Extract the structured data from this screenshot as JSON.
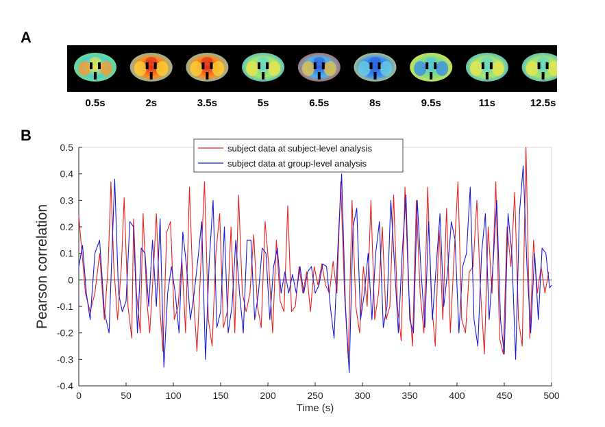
{
  "panels": {
    "a_label": "A",
    "b_label": "B"
  },
  "brain_frames": [
    {
      "label": "0.5s",
      "state": "mixed-warm"
    },
    {
      "label": "2s",
      "state": "hot"
    },
    {
      "label": "3.5s",
      "state": "hot"
    },
    {
      "label": "5s",
      "state": "mixed"
    },
    {
      "label": "6.5s",
      "state": "cold-warm-center"
    },
    {
      "label": "8s",
      "state": "cold"
    },
    {
      "label": "9.5s",
      "state": "mixed-cool"
    },
    {
      "label": "11s",
      "state": "mixed"
    },
    {
      "label": "12.5s",
      "state": "mixed"
    }
  ],
  "colors": {
    "series_red": "#e8201f",
    "series_blue": "#1818d8",
    "zero_line": "#333333"
  },
  "chart_data": {
    "type": "line",
    "title": "",
    "xlabel": "Time (s)",
    "ylabel": "Pearson correlation",
    "xlim": [
      0,
      500
    ],
    "ylim": [
      -0.4,
      0.5
    ],
    "xticks": [
      0,
      50,
      100,
      150,
      200,
      250,
      300,
      350,
      400,
      450,
      500
    ],
    "yticks": [
      -0.4,
      -0.3,
      -0.2,
      -0.1,
      0,
      0.1,
      0.2,
      0.3,
      0.4,
      0.5
    ],
    "ytick_labels": [
      "-0.4",
      "-0.3",
      "-0.2",
      "-0.1",
      "0",
      "0.1",
      "0.2",
      "0.3",
      "0.4",
      "0.5"
    ],
    "legend_position": "top-center",
    "series": [
      {
        "name": "subject data at subject-level analysis",
        "color": "#e8201f",
        "x": [
          0,
          3,
          7,
          12,
          17,
          22,
          27,
          31,
          34,
          37,
          41,
          45,
          48,
          52,
          56,
          58,
          61,
          65,
          68,
          72,
          75,
          79,
          82,
          86,
          89,
          93,
          97,
          101,
          105,
          109,
          113,
          117,
          121,
          125,
          129,
          133,
          137,
          141,
          145,
          149,
          153,
          157,
          161,
          165,
          169,
          173,
          177,
          181,
          185,
          189,
          193,
          197,
          201,
          205,
          209,
          213,
          217,
          221,
          225,
          229,
          233,
          237,
          241,
          245,
          249,
          253,
          257,
          261,
          265,
          269,
          273,
          277,
          281,
          285,
          289,
          293,
          297,
          301,
          305,
          309,
          313,
          317,
          321,
          325,
          329,
          333,
          337,
          341,
          345,
          349,
          353,
          357,
          361,
          365,
          369,
          373,
          377,
          381,
          385,
          389,
          393,
          397,
          401,
          405,
          409,
          413,
          417,
          421,
          425,
          429,
          433,
          437,
          441,
          445,
          449,
          453,
          457,
          461,
          465,
          469,
          473,
          477,
          481,
          485,
          489,
          493,
          497
        ],
        "values": [
          0.24,
          0.12,
          -0.05,
          -0.12,
          -0.05,
          0.1,
          -0.15,
          0.05,
          0.37,
          0.05,
          -0.15,
          0.05,
          0.31,
          -0.1,
          -0.22,
          0.23,
          -0.05,
          -0.2,
          0.25,
          -0.08,
          -0.2,
          0.04,
          0.25,
          -0.12,
          -0.27,
          0.18,
          0.22,
          -0.15,
          -0.1,
          0.08,
          -0.2,
          0.35,
          -0.05,
          -0.27,
          0.05,
          0.37,
          -0.15,
          -0.25,
          0.1,
          0.25,
          -0.18,
          -0.12,
          0.2,
          -0.2,
          0.32,
          -0.05,
          -0.12,
          -0.05,
          0.17,
          -0.1,
          -0.18,
          0.22,
          0.05,
          -0.2,
          0.15,
          -0.08,
          -0.12,
          0.28,
          -0.12,
          -0.1,
          0.05,
          -0.05,
          0.03,
          -0.12,
          0.05,
          -0.02,
          0.06,
          -0.02,
          -0.05,
          0.07,
          -0.05,
          0.37,
          -0.05,
          -0.3,
          0.3,
          -0.1,
          -0.2,
          0.05,
          -0.1,
          0.3,
          -0.15,
          -0.05,
          0.2,
          -0.15,
          -0.1,
          0.32,
          -0.1,
          -0.23,
          0.35,
          -0.05,
          -0.25,
          0.3,
          -0.05,
          -0.2,
          0.35,
          -0.08,
          -0.25,
          0.2,
          -0.15,
          0.27,
          -0.2,
          0.1,
          0.37,
          -0.15,
          -0.2,
          0.03,
          0.05,
          0.3,
          -0.05,
          -0.28,
          0.2,
          -0.05,
          0.37,
          -0.22,
          -0.28,
          0.2,
          0.05,
          0.33,
          -0.15,
          -0.25,
          0.5,
          -0.22,
          0.15,
          -0.05,
          0.05,
          -0.05,
          0.03
        ]
      },
      {
        "name": "subject data at group-level analysis",
        "color": "#1818d8",
        "x": [
          0,
          4,
          8,
          12,
          17,
          22,
          27,
          32,
          35,
          38,
          42,
          46,
          50,
          54,
          58,
          62,
          66,
          70,
          74,
          78,
          82,
          86,
          90,
          94,
          98,
          102,
          106,
          110,
          114,
          118,
          122,
          126,
          130,
          134,
          138,
          142,
          146,
          150,
          154,
          158,
          162,
          166,
          170,
          174,
          178,
          182,
          186,
          190,
          194,
          198,
          202,
          206,
          210,
          214,
          218,
          222,
          226,
          230,
          234,
          238,
          242,
          246,
          250,
          254,
          258,
          262,
          266,
          270,
          274,
          278,
          282,
          286,
          290,
          294,
          298,
          302,
          306,
          310,
          314,
          318,
          322,
          326,
          330,
          334,
          338,
          342,
          346,
          350,
          354,
          358,
          362,
          366,
          370,
          374,
          378,
          382,
          386,
          390,
          394,
          398,
          402,
          406,
          410,
          414,
          418,
          422,
          426,
          430,
          434,
          438,
          442,
          446,
          450,
          454,
          458,
          462,
          466,
          470,
          474,
          478,
          482,
          486,
          490,
          494,
          498,
          500
        ],
        "values": [
          0.05,
          0.13,
          -0.05,
          -0.15,
          0.1,
          0.15,
          -0.12,
          -0.2,
          0.1,
          0.38,
          -0.05,
          -0.12,
          -0.08,
          0.22,
          0.2,
          -0.2,
          0.12,
          0.1,
          -0.1,
          0.15,
          -0.1,
          0.23,
          -0.33,
          -0.05,
          0.05,
          -0.05,
          -0.2,
          0.18,
          0.05,
          -0.15,
          -0.05,
          0.08,
          0.22,
          -0.3,
          0.07,
          0.3,
          -0.18,
          -0.12,
          0.2,
          -0.2,
          -0.1,
          0.15,
          -0.05,
          -0.2,
          0.15,
          0.15,
          -0.15,
          -0.05,
          0.12,
          0.1,
          -0.15,
          0.05,
          0.12,
          -0.05,
          0.03,
          -0.05,
          0.02,
          -0.05,
          0.05,
          -0.05,
          0.03,
          0.05,
          -0.05,
          -0.02,
          0.06,
          0.05,
          -0.1,
          -0.22,
          0.12,
          0.4,
          -0.1,
          -0.35,
          0.2,
          0.27,
          -0.15,
          -0.05,
          0.1,
          -0.15,
          0.1,
          0.22,
          -0.18,
          -0.1,
          0.3,
          0.05,
          -0.2,
          0.1,
          0.32,
          -0.15,
          -0.2,
          0.3,
          0.03,
          -0.18,
          0.22,
          -0.15,
          0.05,
          0.25,
          -0.1,
          0.03,
          0.22,
          0.15,
          -0.2,
          0.05,
          0.1,
          0.35,
          -0.15,
          -0.25,
          0.1,
          0.25,
          -0.15,
          0.05,
          0.3,
          -0.15,
          -0.28,
          0.25,
          0.1,
          -0.3,
          0.25,
          0.43,
          0.05,
          -0.2,
          0.1,
          -0.15,
          0.12,
          0.1,
          -0.03,
          -0.02
        ]
      }
    ]
  }
}
